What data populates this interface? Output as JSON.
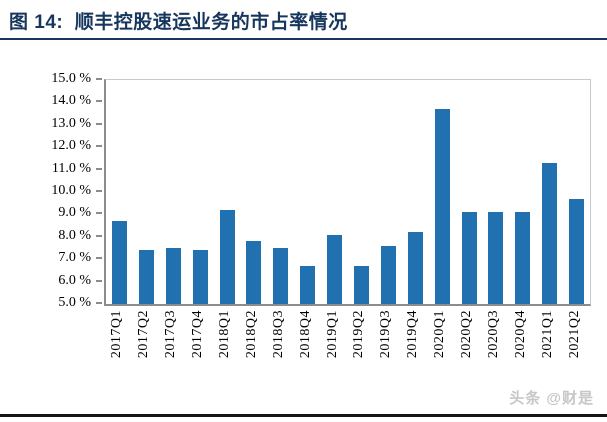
{
  "header": {
    "title": "图 14:  顺丰控股速运业务的市占率情况"
  },
  "watermark": "头条 @财是",
  "colors": {
    "bar": "#2170AF",
    "title": "#17365D",
    "title_rule": "#17365D",
    "bottom_rule": "#151515",
    "axis_line": "#8c8c8c",
    "frame_line": "#c9c9c9",
    "tick_label": "#000000",
    "watermark": "#c7c7c7",
    "background": "#ffffff"
  },
  "chart_data": {
    "type": "bar",
    "title": "顺丰控股速运业务的市占率情况",
    "xlabel": "",
    "ylabel": "",
    "categories": [
      "2017Q1",
      "2017Q2",
      "2017Q3",
      "2017Q4",
      "2018Q1",
      "2018Q2",
      "2018Q3",
      "2018Q4",
      "2019Q1",
      "2019Q2",
      "2019Q3",
      "2019Q4",
      "2020Q1",
      "2020Q2",
      "2020Q3",
      "2020Q4",
      "2021Q1",
      "2021Q2"
    ],
    "values": [
      8.7,
      7.4,
      7.5,
      7.4,
      9.2,
      7.8,
      7.5,
      6.7,
      8.1,
      6.7,
      7.6,
      8.2,
      13.7,
      9.1,
      9.1,
      9.1,
      11.3,
      9.7
    ],
    "unit": "%",
    "ylim": [
      5.0,
      15.0
    ],
    "ytick_step": 1.0,
    "ytick_labels": [
      "15.0 %",
      "14.0 %",
      "13.0 %",
      "12.0 %",
      "11.0 %",
      "10.0 %",
      "9.0 %",
      "8.0 %",
      "7.0 %",
      "6.0 %",
      "5.0 %"
    ],
    "grid": false,
    "legend": null,
    "xtick_rotation_deg": 90
  }
}
